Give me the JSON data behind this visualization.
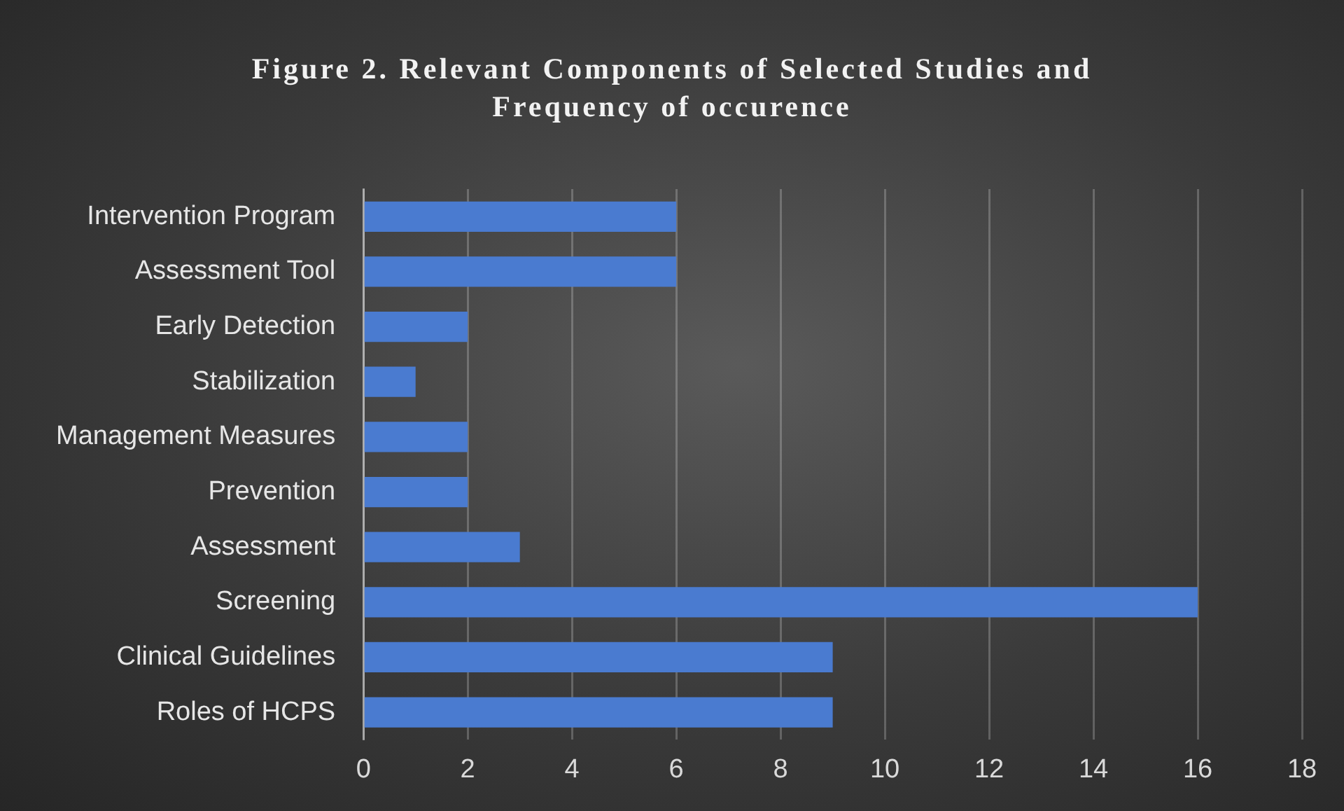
{
  "chart_data": {
    "type": "bar",
    "orientation": "horizontal",
    "title": "Figure 2. Relevant Components of Selected Studies and Frequency of occurence",
    "categories": [
      "Intervention Program",
      "Assessment Tool",
      "Early Detection",
      "Stabilization",
      "Management Measures",
      "Prevention",
      "Assessment",
      "Screening",
      "Clinical Guidelines",
      "Roles of HCPS"
    ],
    "values": [
      6,
      6,
      2,
      1,
      2,
      2,
      3,
      16,
      9,
      9
    ],
    "color": "#4a7bd0",
    "xlim": [
      0,
      18
    ],
    "xticks": [
      0,
      2,
      4,
      6,
      8,
      10,
      12,
      14,
      16,
      18
    ],
    "grid": "x",
    "legend": false
  }
}
